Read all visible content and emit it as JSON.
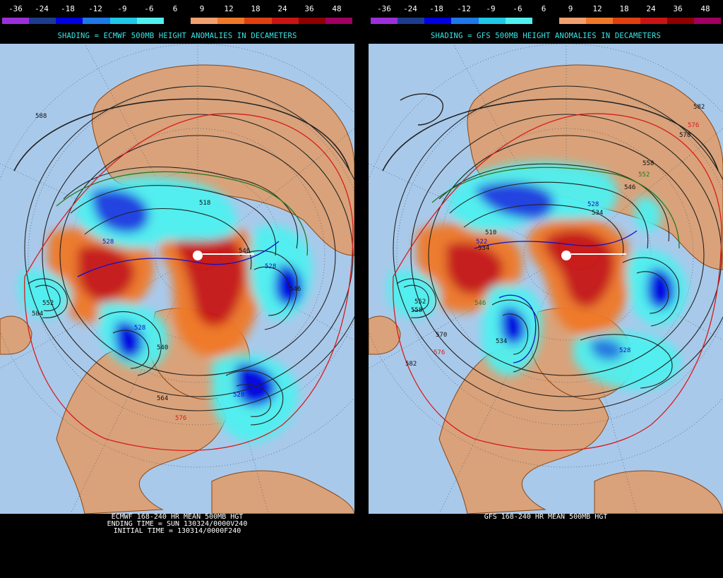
{
  "scale": {
    "labels": [
      "-36",
      "-24",
      "-18",
      "-12",
      "-9",
      "-6",
      "6",
      "9",
      "12",
      "18",
      "24",
      "36",
      "48"
    ],
    "colors": [
      "#9b30d8",
      "#1e3c8c",
      "#0000e0",
      "#1e78e6",
      "#1ec8e6",
      "#50f0f0",
      "#000000",
      "#f0a070",
      "#f07828",
      "#e04010",
      "#c81414",
      "#8c0000",
      "#a00060"
    ]
  },
  "colors": {
    "land": "#d9a27a",
    "ocean": "#a9c9ea",
    "border": "#8b4513",
    "contour": "#222222",
    "contour_552": "#1f7a1f",
    "contour_528": "#1010c8",
    "contour_576": "#d81c1c",
    "positive_anomaly": "#d81c1c",
    "negative_anomaly": "#1010d8"
  },
  "panels": {
    "left": {
      "subtitle": "SHADING = ECMWF 500MB HEIGHT ANOMALIES IN DECAMETERS",
      "caption": [
        "ECMWF 168-240 HR MEAN 500MB HGT",
        "ENDING TIME = SUN 130324/0000V240",
        "INITIAL TIME = 130314/0000F240"
      ],
      "contour_labels": [
        "588",
        "518",
        "528",
        "546",
        "528",
        "552",
        "528",
        "540",
        "564",
        "576",
        "584",
        "528",
        "546"
      ]
    },
    "right": {
      "subtitle": "SHADING = GFS 500MB HEIGHT ANOMALIES IN DECAMETERS",
      "caption": [
        "GFS 168-240 HR MEAN 500MB HGT",
        "",
        ""
      ],
      "contour_labels": [
        "582",
        "576",
        "570",
        "558",
        "552",
        "546",
        "528",
        "534",
        "510",
        "522",
        "534",
        "546",
        "552",
        "558",
        "570",
        "576",
        "582",
        "534",
        "528"
      ]
    }
  }
}
